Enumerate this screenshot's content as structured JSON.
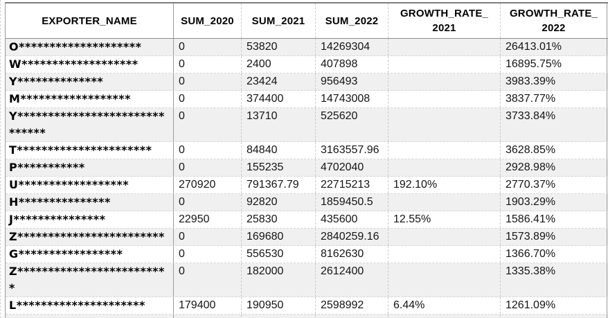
{
  "colors": {
    "stripe": "#f0f0f0",
    "grid_dashed": "#c9c9c9",
    "border_solid": "#9a9a9a",
    "header_text": "#000000",
    "cell_text": "#141414"
  },
  "table": {
    "headers": [
      {
        "id": "exporter_name",
        "line1": "EXPORTER_NAME",
        "line2": ""
      },
      {
        "id": "sum_2020",
        "line1": "SUM_2020",
        "line2": ""
      },
      {
        "id": "sum_2021",
        "line1": "SUM_2021",
        "line2": ""
      },
      {
        "id": "sum_2022",
        "line1": "SUM_2022",
        "line2": ""
      },
      {
        "id": "growth_rate_2021",
        "line1": "GROWTH_RATE_",
        "line2": "2021"
      },
      {
        "id": "growth_rate_2022",
        "line1": "GROWTH_RATE_",
        "line2": "2022"
      }
    ],
    "column_keys": [
      "exporter",
      "sum_2020",
      "sum_2021",
      "sum_2022",
      "growth_rate_2021",
      "growth_rate_2022"
    ],
    "rows": [
      {
        "exporter": "O********************",
        "sum_2020": "0",
        "sum_2021": "53820",
        "sum_2022": "14269304",
        "growth_rate_2021": "",
        "growth_rate_2022": "26413.01%"
      },
      {
        "exporter": "W*******************",
        "sum_2020": "0",
        "sum_2021": "2400",
        "sum_2022": "407898",
        "growth_rate_2021": "",
        "growth_rate_2022": "16895.75%"
      },
      {
        "exporter": "Y**************",
        "sum_2020": "0",
        "sum_2021": "23424",
        "sum_2022": "956493",
        "growth_rate_2021": "",
        "growth_rate_2022": "3983.39%"
      },
      {
        "exporter": "M******************",
        "sum_2020": "0",
        "sum_2021": "374400",
        "sum_2022": "14743008",
        "growth_rate_2021": "",
        "growth_rate_2022": "3837.77%"
      },
      {
        "exporter": "Y************************\n******",
        "sum_2020": "0",
        "sum_2021": "13710",
        "sum_2022": "525620",
        "growth_rate_2021": "",
        "growth_rate_2022": "3733.84%"
      },
      {
        "exporter": "T**********************",
        "sum_2020": "0",
        "sum_2021": "84840",
        "sum_2022": "3163557.96",
        "growth_rate_2021": "",
        "growth_rate_2022": "3628.85%"
      },
      {
        "exporter": "P***********",
        "sum_2020": "0",
        "sum_2021": "155235",
        "sum_2022": "4702040",
        "growth_rate_2021": "",
        "growth_rate_2022": "2928.98%"
      },
      {
        "exporter": "U******************",
        "sum_2020": "270920",
        "sum_2021": "791367.79",
        "sum_2022": "22715213",
        "growth_rate_2021": "192.10%",
        "growth_rate_2022": "2770.37%"
      },
      {
        "exporter": "H***************",
        "sum_2020": "0",
        "sum_2021": "92820",
        "sum_2022": "1859450.5",
        "growth_rate_2021": "",
        "growth_rate_2022": "1903.29%"
      },
      {
        "exporter": "J***************",
        "sum_2020": "22950",
        "sum_2021": "25830",
        "sum_2022": "435600",
        "growth_rate_2021": "12.55%",
        "growth_rate_2022": "1586.41%"
      },
      {
        "exporter": "Z************************",
        "sum_2020": "0",
        "sum_2021": "169680",
        "sum_2022": "2840259.16",
        "growth_rate_2021": "",
        "growth_rate_2022": "1573.89%"
      },
      {
        "exporter": "G*****************",
        "sum_2020": "0",
        "sum_2021": "556530",
        "sum_2022": "8162630",
        "growth_rate_2021": "",
        "growth_rate_2022": "1366.70%"
      },
      {
        "exporter": "Z************************\n*",
        "sum_2020": "0",
        "sum_2021": "182000",
        "sum_2022": "2612400",
        "growth_rate_2021": "",
        "growth_rate_2022": "1335.38%"
      },
      {
        "exporter": "L*********************",
        "sum_2020": "179400",
        "sum_2021": "190950",
        "sum_2022": "2598992",
        "growth_rate_2021": "6.44%",
        "growth_rate_2022": "1261.09%"
      }
    ]
  }
}
